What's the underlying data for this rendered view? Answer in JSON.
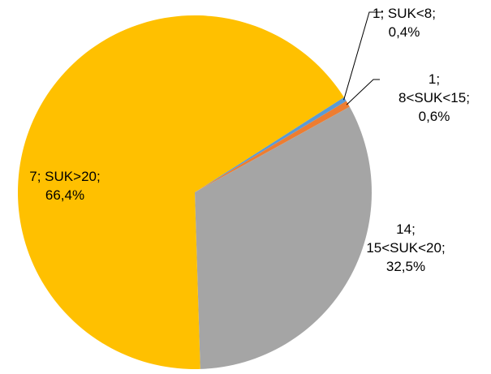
{
  "chart_data": {
    "type": "pie",
    "title": "",
    "slices": [
      {
        "name": "SUK<8",
        "count": 1,
        "percent": 0.4,
        "percent_label": "0,4%",
        "label_lines": [
          "1; SUK<8;",
          "0,4%"
        ],
        "color": "#5B9BD5"
      },
      {
        "name": "8<SUK<15",
        "count": 1,
        "percent": 0.6,
        "percent_label": "0,6%",
        "label_lines": [
          "1;",
          "8<SUK<15;",
          "0,6%"
        ],
        "color": "#ED7D31"
      },
      {
        "name": "15<SUK<20",
        "count": 14,
        "percent": 32.5,
        "percent_label": "32,5%",
        "label_lines": [
          "14;",
          "15<SUK<20;",
          "32,5%"
        ],
        "color": "#A5A5A5"
      },
      {
        "name": "SUK>20",
        "count": 7,
        "percent": 66.4,
        "percent_label": "66,4%",
        "label_lines": [
          "7; SUK>20;",
          "66,4%"
        ],
        "color": "#FFC000"
      }
    ]
  }
}
